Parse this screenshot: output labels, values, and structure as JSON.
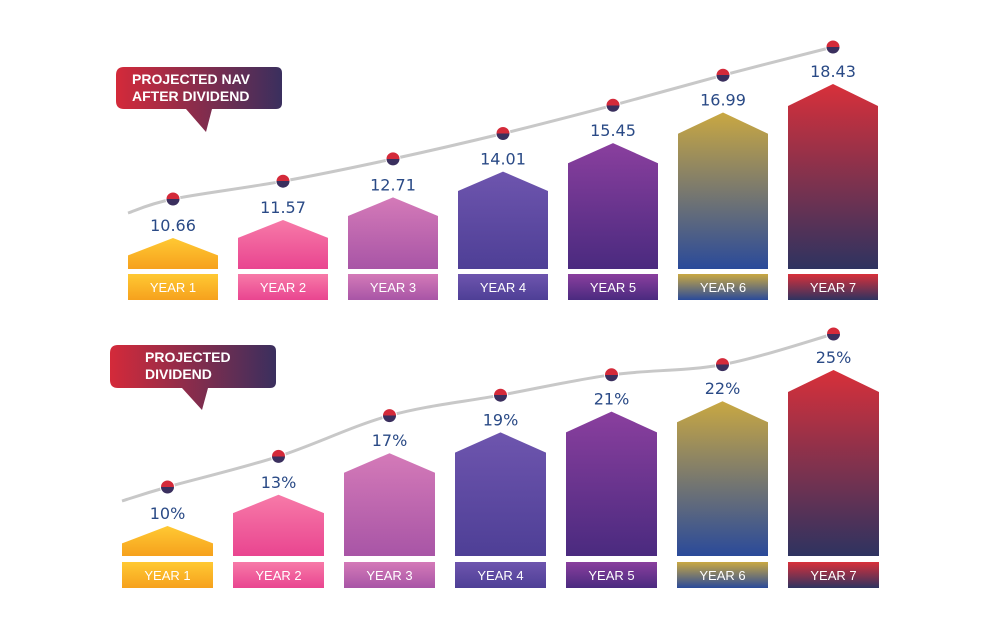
{
  "chart_data": [
    {
      "type": "bar",
      "title": "PROJECTED NAV AFTER DIVIDEND",
      "title_lines": [
        "PROJECTED NAV",
        "AFTER DIVIDEND"
      ],
      "categories": [
        "YEAR 1",
        "YEAR 2",
        "YEAR 3",
        "YEAR 4",
        "YEAR 5",
        "YEAR 6",
        "YEAR 7"
      ],
      "values": [
        10.66,
        11.57,
        12.71,
        14.01,
        15.45,
        16.99,
        18.43
      ],
      "value_labels": [
        "10.66",
        "11.57",
        "12.71",
        "14.01",
        "15.45",
        "16.99",
        "18.43"
      ],
      "trend_line": true,
      "xlabel": "",
      "ylabel": ""
    },
    {
      "type": "bar",
      "title": "PROJECTED DIVIDEND",
      "title_lines": [
        "PROJECTED",
        "DIVIDEND"
      ],
      "categories": [
        "YEAR 1",
        "YEAR 2",
        "YEAR 3",
        "YEAR 4",
        "YEAR 5",
        "YEAR 6",
        "YEAR 7"
      ],
      "values": [
        10,
        13,
        17,
        19,
        21,
        22,
        25
      ],
      "value_labels": [
        "10%",
        "13%",
        "17%",
        "19%",
        "21%",
        "22%",
        "25%"
      ],
      "unit": "%",
      "trend_line": true,
      "xlabel": "",
      "ylabel": ""
    }
  ],
  "colors": {
    "value_text": "#2a4a86",
    "trend_line": "#c8c8c8",
    "bubble_start": "#d42a3a",
    "bubble_end": "#3a2f5e",
    "bars": [
      [
        "#f6a11d",
        "#ffc933"
      ],
      [
        "#e94590",
        "#f77aa8"
      ],
      [
        "#a855a6",
        "#d47ab8"
      ],
      [
        "#4e3f96",
        "#6e55ae"
      ],
      [
        "#4a2a7f",
        "#8a3f9e"
      ],
      [
        "#2a4a9a",
        "#c9a842"
      ],
      [
        "#2e3360",
        "#d8303a"
      ]
    ]
  }
}
